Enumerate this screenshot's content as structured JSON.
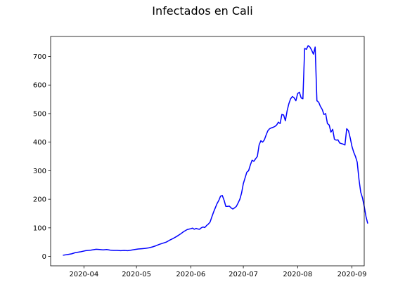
{
  "chart_data": {
    "type": "line",
    "title": "Infectados en Cali",
    "xlabel": "",
    "ylabel": "",
    "x_type": "date",
    "xlim": [
      "2020-03-13",
      "2020-09-08"
    ],
    "ylim": [
      -33,
      770
    ],
    "x_ticks": [
      "2020-04-01",
      "2020-05-01",
      "2020-06-01",
      "2020-07-01",
      "2020-08-01",
      "2020-09-01"
    ],
    "x_tick_labels": [
      "2020-04",
      "2020-05",
      "2020-06",
      "2020-07",
      "2020-08",
      "2020-09"
    ],
    "y_ticks": [
      0,
      100,
      200,
      300,
      400,
      500,
      600,
      700
    ],
    "y_tick_labels": [
      "0",
      "100",
      "200",
      "300",
      "400",
      "500",
      "600",
      "700"
    ],
    "grid": false,
    "line_color": "#0000ff",
    "series": [
      {
        "name": "",
        "points": [
          [
            "2020-03-20",
            4
          ],
          [
            "2020-03-23",
            7
          ],
          [
            "2020-03-25",
            9
          ],
          [
            "2020-03-27",
            13
          ],
          [
            "2020-03-30",
            16
          ],
          [
            "2020-04-02",
            20
          ],
          [
            "2020-04-05",
            22
          ],
          [
            "2020-04-08",
            25
          ],
          [
            "2020-04-10",
            24
          ],
          [
            "2020-04-12",
            23
          ],
          [
            "2020-04-14",
            24
          ],
          [
            "2020-04-16",
            22
          ],
          [
            "2020-04-18",
            21
          ],
          [
            "2020-04-20",
            21
          ],
          [
            "2020-04-22",
            20
          ],
          [
            "2020-04-24",
            21
          ],
          [
            "2020-04-26",
            20
          ],
          [
            "2020-04-28",
            22
          ],
          [
            "2020-04-30",
            24
          ],
          [
            "2020-05-02",
            26
          ],
          [
            "2020-05-04",
            27
          ],
          [
            "2020-05-06",
            28
          ],
          [
            "2020-05-08",
            30
          ],
          [
            "2020-05-10",
            33
          ],
          [
            "2020-05-12",
            37
          ],
          [
            "2020-05-14",
            42
          ],
          [
            "2020-05-16",
            46
          ],
          [
            "2020-05-18",
            50
          ],
          [
            "2020-05-20",
            57
          ],
          [
            "2020-05-22",
            63
          ],
          [
            "2020-05-24",
            70
          ],
          [
            "2020-05-26",
            78
          ],
          [
            "2020-05-28",
            87
          ],
          [
            "2020-05-30",
            94
          ],
          [
            "2020-06-01",
            97
          ],
          [
            "2020-06-02",
            99
          ],
          [
            "2020-06-03",
            95
          ],
          [
            "2020-06-04",
            98
          ],
          [
            "2020-06-05",
            96
          ],
          [
            "2020-06-06",
            95
          ],
          [
            "2020-06-07",
            100
          ],
          [
            "2020-06-08",
            103
          ],
          [
            "2020-06-09",
            101
          ],
          [
            "2020-06-10",
            108
          ],
          [
            "2020-06-11",
            113
          ],
          [
            "2020-06-12",
            120
          ],
          [
            "2020-06-13",
            138
          ],
          [
            "2020-06-14",
            155
          ],
          [
            "2020-06-15",
            170
          ],
          [
            "2020-06-16",
            185
          ],
          [
            "2020-06-17",
            196
          ],
          [
            "2020-06-18",
            211
          ],
          [
            "2020-06-19",
            213
          ],
          [
            "2020-06-20",
            197
          ],
          [
            "2020-06-21",
            175
          ],
          [
            "2020-06-22",
            175
          ],
          [
            "2020-06-23",
            176
          ],
          [
            "2020-06-24",
            170
          ],
          [
            "2020-06-25",
            166
          ],
          [
            "2020-06-26",
            170
          ],
          [
            "2020-06-27",
            175
          ],
          [
            "2020-06-28",
            187
          ],
          [
            "2020-06-29",
            200
          ],
          [
            "2020-06-30",
            222
          ],
          [
            "2020-07-01",
            255
          ],
          [
            "2020-07-02",
            275
          ],
          [
            "2020-07-03",
            295
          ],
          [
            "2020-07-04",
            300
          ],
          [
            "2020-07-05",
            320
          ],
          [
            "2020-07-06",
            337
          ],
          [
            "2020-07-07",
            333
          ],
          [
            "2020-07-08",
            342
          ],
          [
            "2020-07-09",
            350
          ],
          [
            "2020-07-10",
            390
          ],
          [
            "2020-07-11",
            405
          ],
          [
            "2020-07-12",
            400
          ],
          [
            "2020-07-13",
            408
          ],
          [
            "2020-07-14",
            425
          ],
          [
            "2020-07-15",
            440
          ],
          [
            "2020-07-16",
            447
          ],
          [
            "2020-07-17",
            450
          ],
          [
            "2020-07-18",
            452
          ],
          [
            "2020-07-19",
            455
          ],
          [
            "2020-07-20",
            460
          ],
          [
            "2020-07-21",
            470
          ],
          [
            "2020-07-22",
            465
          ],
          [
            "2020-07-23",
            497
          ],
          [
            "2020-07-24",
            495
          ],
          [
            "2020-07-25",
            475
          ],
          [
            "2020-07-26",
            510
          ],
          [
            "2020-07-27",
            535
          ],
          [
            "2020-07-28",
            552
          ],
          [
            "2020-07-29",
            560
          ],
          [
            "2020-07-30",
            555
          ],
          [
            "2020-07-31",
            545
          ],
          [
            "2020-08-01",
            570
          ],
          [
            "2020-08-02",
            575
          ],
          [
            "2020-08-03",
            555
          ],
          [
            "2020-08-04",
            552
          ],
          [
            "2020-08-05",
            728
          ],
          [
            "2020-08-06",
            725
          ],
          [
            "2020-08-07",
            738
          ],
          [
            "2020-08-08",
            733
          ],
          [
            "2020-08-09",
            722
          ],
          [
            "2020-08-10",
            708
          ],
          [
            "2020-08-11",
            733
          ],
          [
            "2020-08-12",
            545
          ],
          [
            "2020-08-13",
            540
          ],
          [
            "2020-08-14",
            525
          ],
          [
            "2020-08-15",
            515
          ],
          [
            "2020-08-16",
            497
          ],
          [
            "2020-08-17",
            500
          ],
          [
            "2020-08-18",
            465
          ],
          [
            "2020-08-19",
            460
          ],
          [
            "2020-08-20",
            435
          ],
          [
            "2020-08-21",
            445
          ],
          [
            "2020-08-22",
            410
          ],
          [
            "2020-08-23",
            407
          ],
          [
            "2020-08-24",
            408
          ],
          [
            "2020-08-25",
            397
          ],
          [
            "2020-08-26",
            395
          ],
          [
            "2020-08-27",
            393
          ],
          [
            "2020-08-28",
            390
          ],
          [
            "2020-08-29",
            447
          ],
          [
            "2020-08-30",
            440
          ],
          [
            "2020-08-31",
            415
          ],
          [
            "2020-09-01",
            385
          ],
          [
            "2020-09-02",
            365
          ],
          [
            "2020-09-03",
            350
          ],
          [
            "2020-09-04",
            330
          ],
          [
            "2020-09-05",
            270
          ],
          [
            "2020-09-06",
            225
          ],
          [
            "2020-09-07",
            205
          ],
          [
            "2020-09-08",
            175
          ],
          [
            "2020-09-09",
            140
          ],
          [
            "2020-09-10",
            115
          ]
        ]
      }
    ]
  }
}
